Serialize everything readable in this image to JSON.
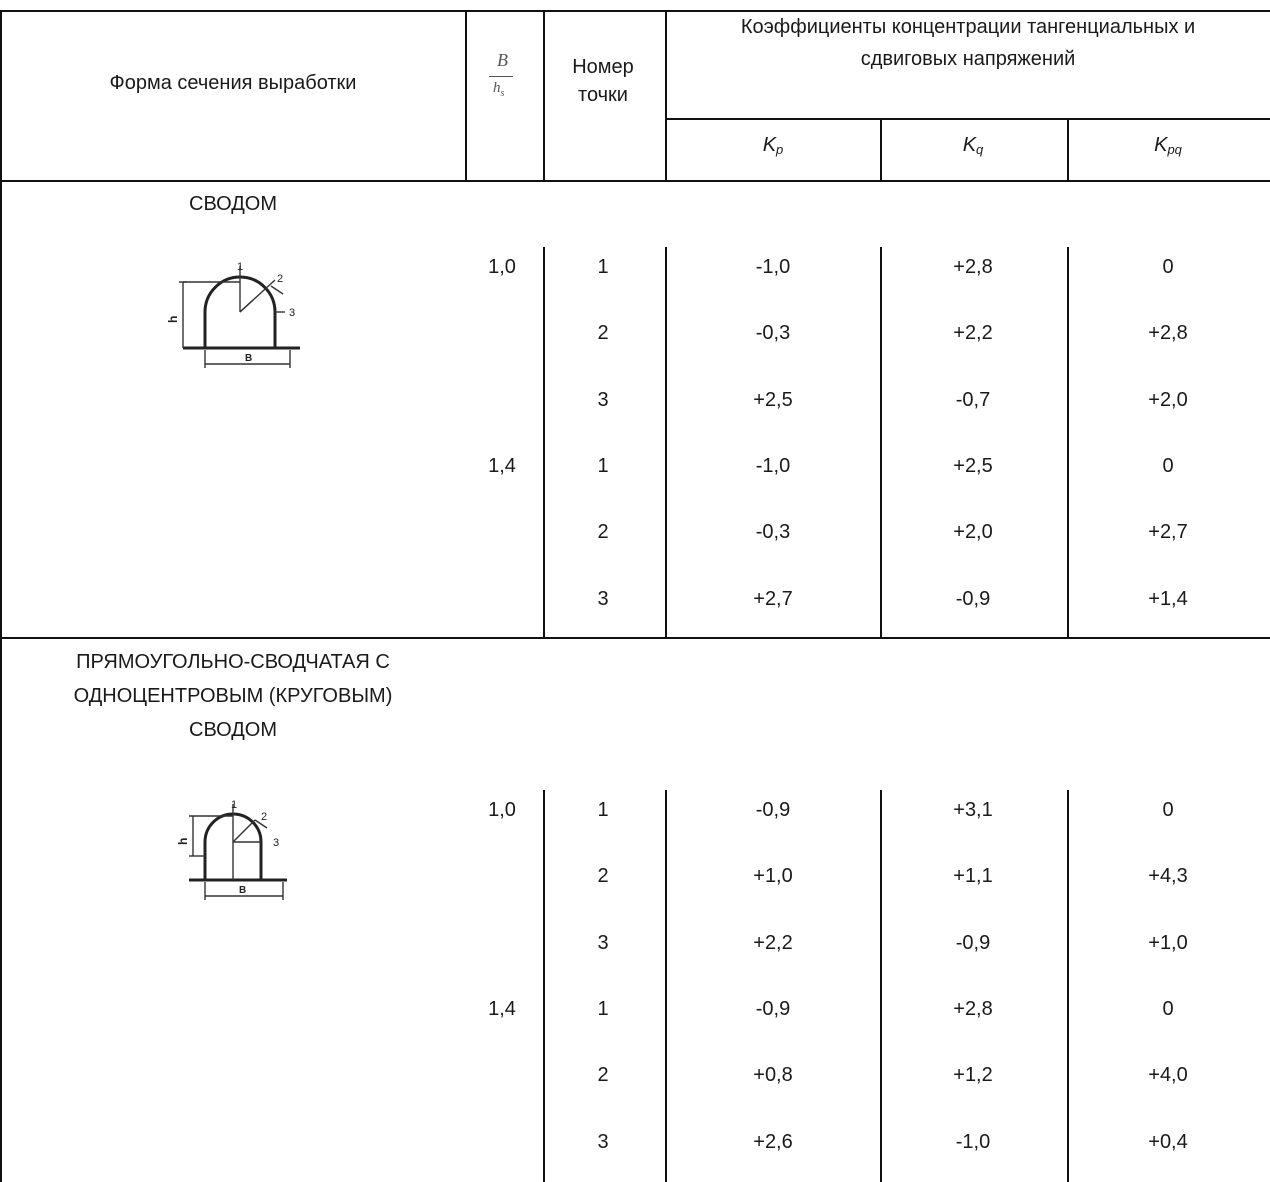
{
  "header": {
    "form": "Форма сечения выработки",
    "ratio_num": "B",
    "ratio_den": "h",
    "ratio_den_sub": "s",
    "point_line1": "Номер",
    "point_line2": "точки",
    "coef_line1": "Коэффициенты концентрации тангенциальных и",
    "coef_line2": "сдвиговых напряжений",
    "kp": "K",
    "kp_sub": "p",
    "kq": "K",
    "kq_sub": "q",
    "kpq": "K",
    "kpq_sub": "pq"
  },
  "sections": [
    {
      "title_lines": [
        "СВОДОМ"
      ],
      "figure": {
        "label_b": "B",
        "label_h": "h",
        "pts": [
          "1",
          "2",
          "3"
        ]
      },
      "rows": [
        {
          "ratio": "1,0",
          "point": "1",
          "kp": "-1,0",
          "kq": "+2,8",
          "kpq": "0"
        },
        {
          "ratio": "",
          "point": "2",
          "kp": "-0,3",
          "kq": "+2,2",
          "kpq": "+2,8"
        },
        {
          "ratio": "",
          "point": "3",
          "kp": "+2,5",
          "kq": "-0,7",
          "kpq": "+2,0"
        },
        {
          "ratio": "1,4",
          "point": "1",
          "kp": "-1,0",
          "kq": "+2,5",
          "kpq": "0"
        },
        {
          "ratio": "",
          "point": "2",
          "kp": "-0,3",
          "kq": "+2,0",
          "kpq": "+2,7"
        },
        {
          "ratio": "",
          "point": "3",
          "kp": "+2,7",
          "kq": "-0,9",
          "kpq": "+1,4"
        }
      ]
    },
    {
      "title_lines": [
        "ПРЯМОУГОЛЬНО-СВОДЧАТАЯ С",
        "ОДНОЦЕНТРОВЫМ (КРУГОВЫМ)",
        "СВОДОМ"
      ],
      "figure": {
        "label_b": "B",
        "label_h": "h",
        "pts": [
          "1",
          "2",
          "3"
        ]
      },
      "rows": [
        {
          "ratio": "1,0",
          "point": "1",
          "kp": "-0,9",
          "kq": "+3,1",
          "kpq": "0"
        },
        {
          "ratio": "",
          "point": "2",
          "kp": "+1,0",
          "kq": "+1,1",
          "kpq": "+4,3"
        },
        {
          "ratio": "",
          "point": "3",
          "kp": "+2,2",
          "kq": "-0,9",
          "kpq": "+1,0"
        },
        {
          "ratio": "1,4",
          "point": "1",
          "kp": "-0,9",
          "kq": "+2,8",
          "kpq": "0"
        },
        {
          "ratio": "",
          "point": "2",
          "kp": "+0,8",
          "kq": "+1,2",
          "kpq": "+4,0"
        },
        {
          "ratio": "",
          "point": "3",
          "kp": "+2,6",
          "kq": "-1,0",
          "kpq": "+0,4"
        }
      ]
    }
  ]
}
